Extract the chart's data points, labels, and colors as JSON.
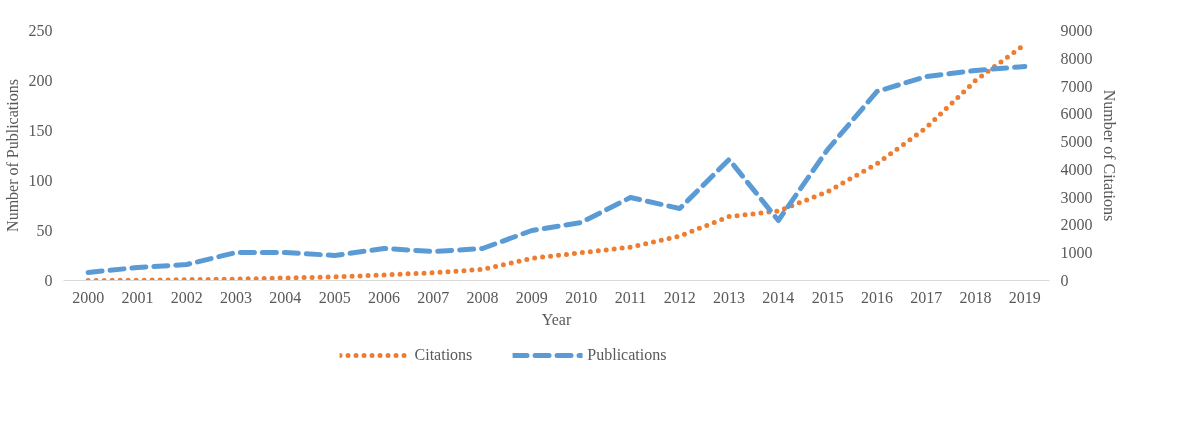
{
  "chart_data": {
    "type": "line",
    "xlabel": "Year",
    "ylabel": "Number of Publications",
    "y2label": "Number of Citations",
    "categories": [
      "2000",
      "2001",
      "2002",
      "2003",
      "2004",
      "2005",
      "2006",
      "2007",
      "2008",
      "2009",
      "2010",
      "2011",
      "2012",
      "2013",
      "2014",
      "2015",
      "2016",
      "2017",
      "2018",
      "2019"
    ],
    "ylim": [
      0,
      250
    ],
    "yticks": [
      0,
      50,
      100,
      150,
      200,
      250
    ],
    "y2lim": [
      0,
      9000
    ],
    "y2ticks": [
      0,
      1000,
      2000,
      3000,
      4000,
      5000,
      6000,
      7000,
      8000,
      9000
    ],
    "grid": false,
    "legend": "bottom",
    "series": [
      {
        "name": "Citations",
        "color": "#ed7d31",
        "axis": "y2",
        "line_style": "dotted",
        "values": [
          0,
          10,
          30,
          50,
          90,
          130,
          200,
          280,
          400,
          800,
          1000,
          1200,
          1600,
          2300,
          2500,
          3200,
          4200,
          5500,
          7200,
          8500
        ]
      },
      {
        "name": "Publications",
        "color": "#5b9bd5",
        "axis": "y",
        "line_style": "dashed",
        "values": [
          8,
          13,
          16,
          28,
          28,
          25,
          32,
          29,
          32,
          50,
          58,
          83,
          72,
          121,
          60,
          131,
          189,
          204,
          210,
          214
        ]
      }
    ]
  }
}
